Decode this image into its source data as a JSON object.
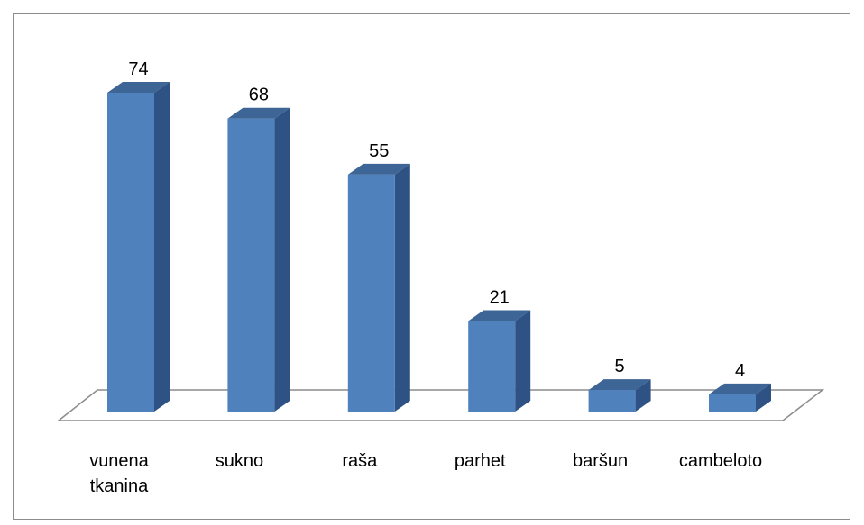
{
  "chart_data": {
    "type": "bar3d",
    "categories": [
      "vunena tkanina",
      "sukno",
      "raša",
      "parhet",
      "baršun",
      "cambeloto"
    ],
    "values": [
      74,
      68,
      55,
      21,
      5,
      4
    ],
    "color": "#4f81bd"
  }
}
